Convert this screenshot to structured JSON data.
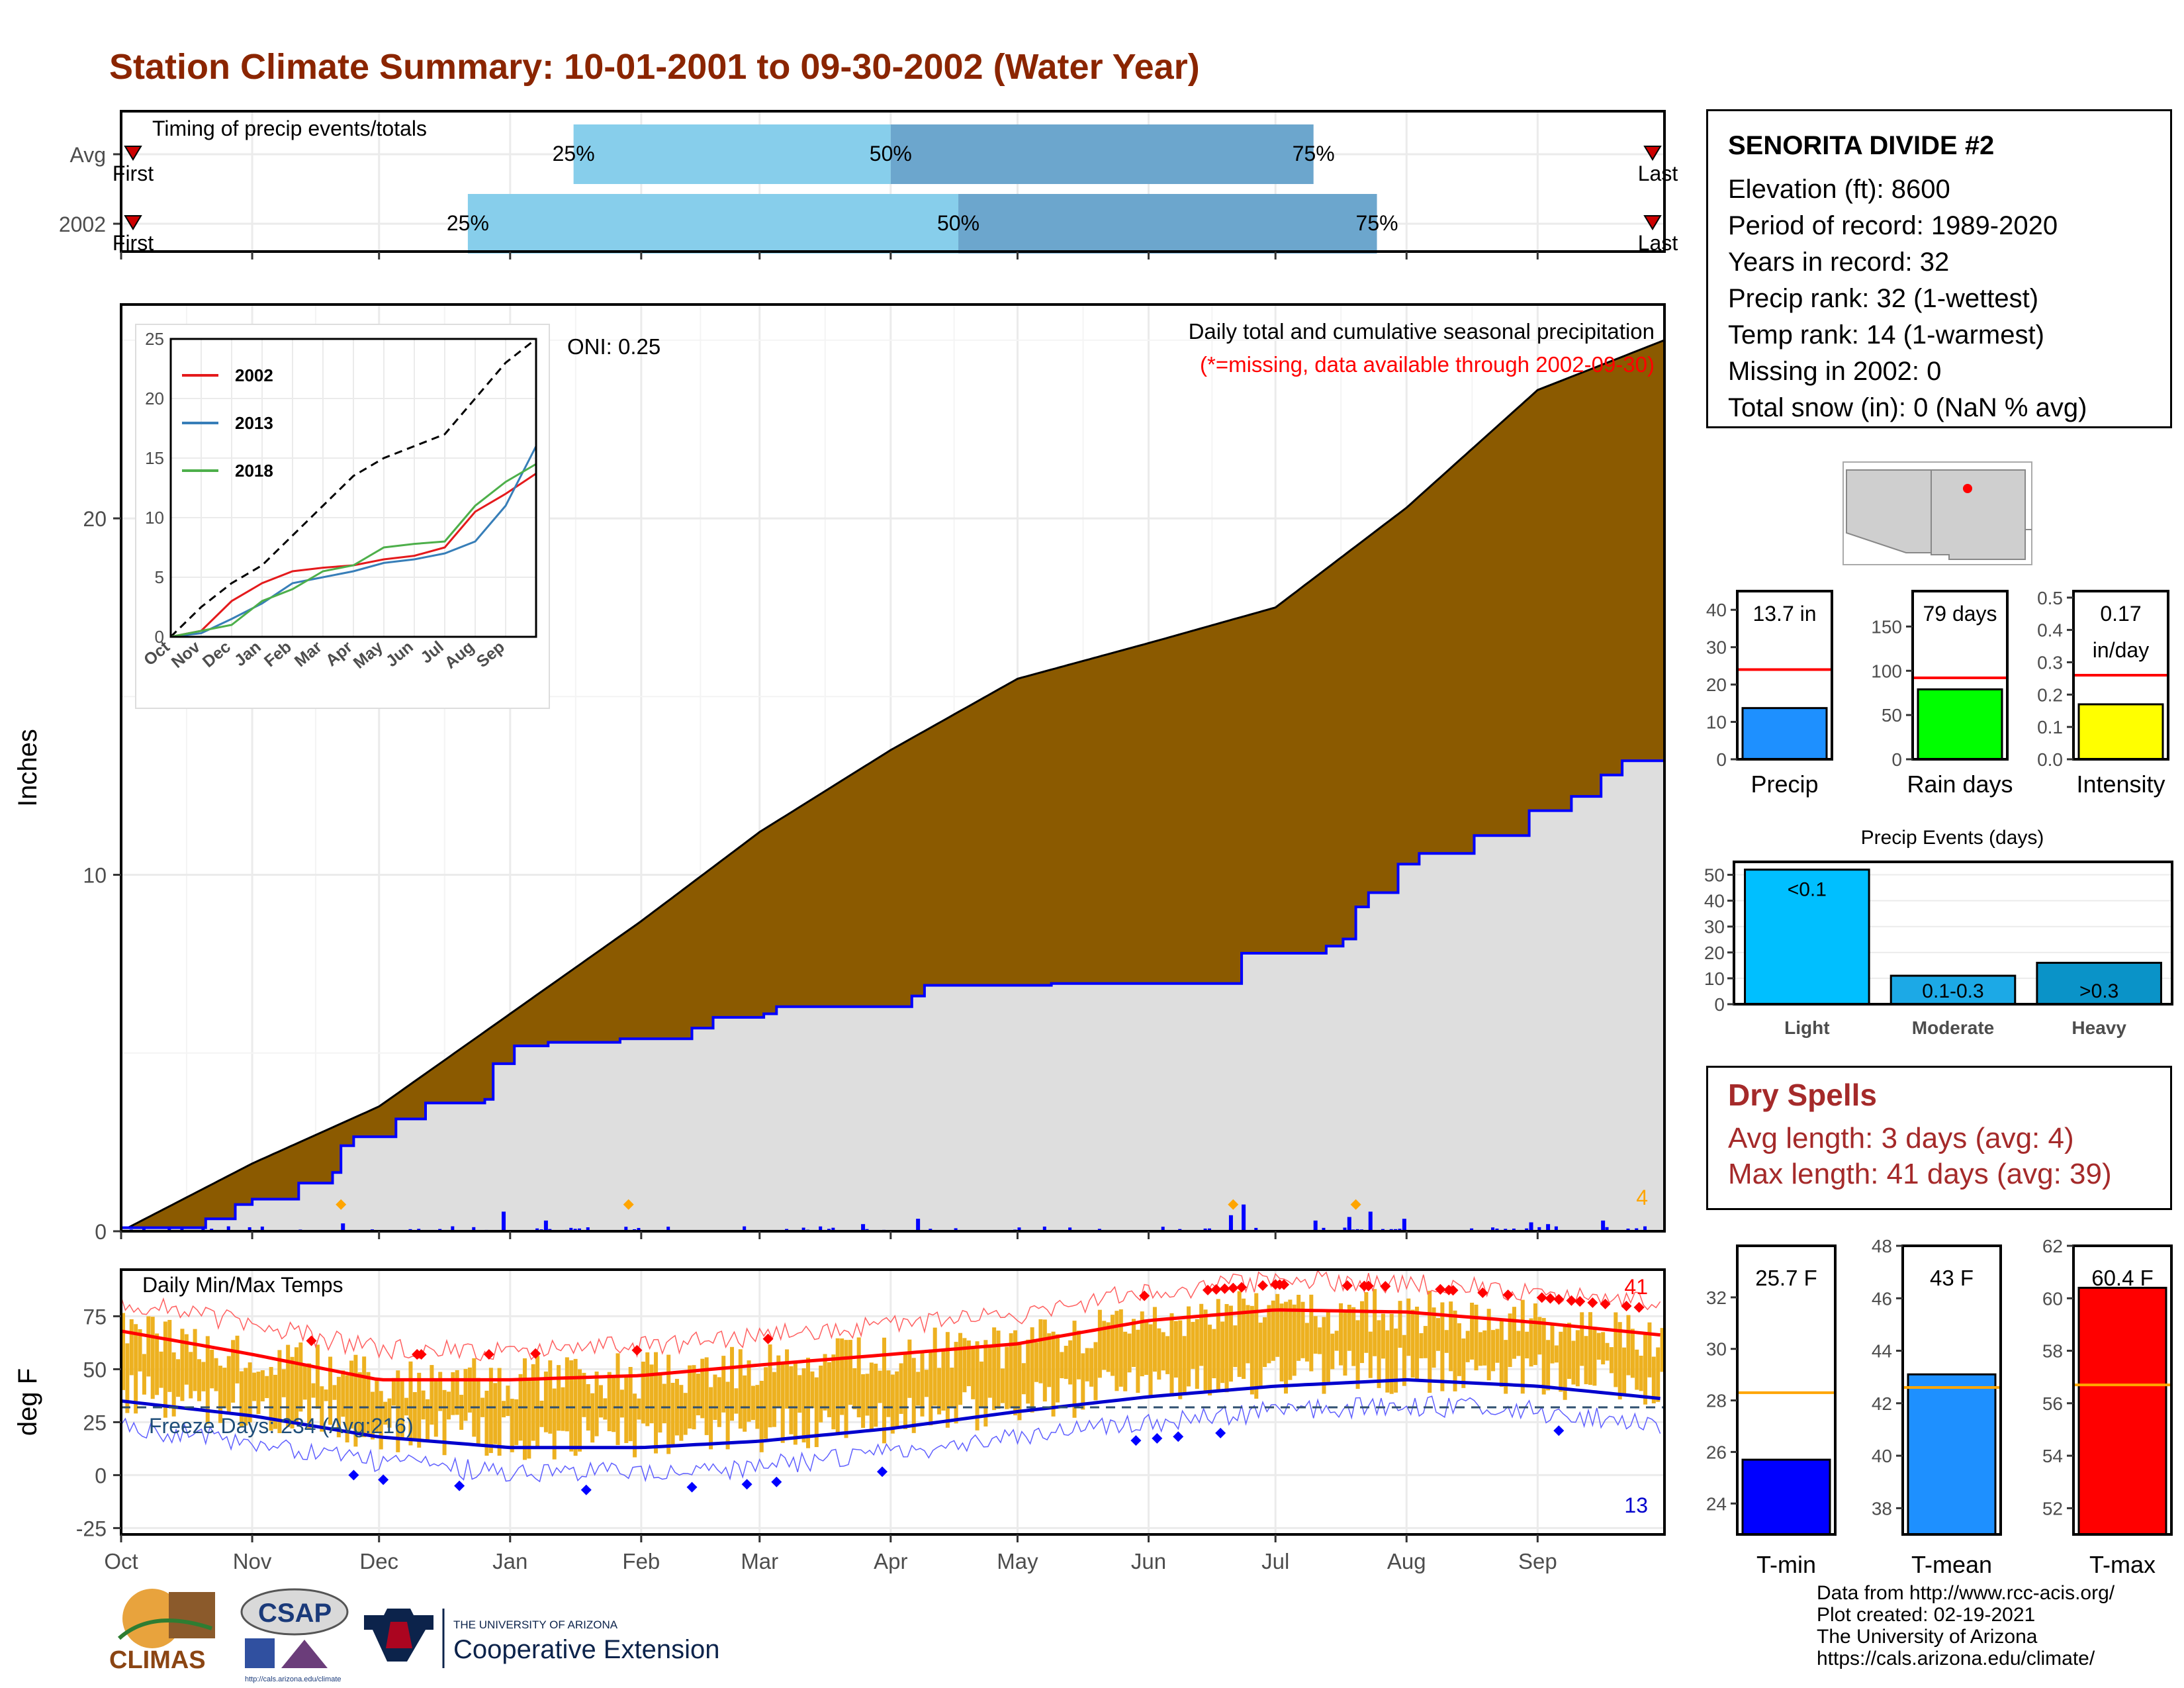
{
  "page": {
    "title": "Station Climate Summary: 10-01-2001 to 09-30-2002 (Water Year)"
  },
  "station": {
    "name": "SENORITA DIVIDE #2",
    "elevation": "Elevation (ft): 8600",
    "period": "Period of record: 1989-2020",
    "years": "Years in record: 32",
    "precip_rank": "Precip rank: 32 (1-wettest)",
    "temp_rank": "Temp rank: 14 (1-warmest)",
    "missing": "Missing in 2002: 0",
    "snow": "Total snow (in): 0 (NaN % avg)"
  },
  "dry_spells": {
    "title": "Dry Spells",
    "avg": "Avg length: 3 days (avg: 4)",
    "max": "Max length: 41 days (avg: 39)"
  },
  "credits": {
    "line1": "Data from http://www.rcc-acis.org/",
    "line2": "Plot created: 02-19-2021",
    "line3": "The University of Arizona",
    "line4": "https://cals.arizona.edu/climate/"
  },
  "logos": {
    "climas": "CLIMAS",
    "csap": "CSAP",
    "csap_url": "http://cals.arizona.edu/climate",
    "ua_small": "THE UNIVERSITY OF ARIZONA",
    "ua_ext": "Cooperative Extension"
  },
  "colors": {
    "title": "#8B2500",
    "cum_avg_fill": "#8B5A00",
    "cum_obs_fill": "#DEDEDE",
    "cum_obs_line": "#0000FF",
    "timing_light": "#87CEEB",
    "timing_dark": "#6CA6CD",
    "temp_bars": "#EDB120",
    "tmax": "#FF0000",
    "tmin": "#0000CD"
  },
  "chart_data": [
    {
      "id": "timing",
      "type": "bar",
      "title": "Timing of precip events/totals",
      "rows": [
        {
          "label": "Avg",
          "first": "First",
          "last": "Last",
          "p25": "25%",
          "p50": "50%",
          "p75": "75%",
          "q25_day": 107,
          "q50_day": 182,
          "q75_day": 282
        },
        {
          "label": "2002",
          "first": "First",
          "last": "Last",
          "p25": "25%",
          "p50": "50%",
          "p75": "75%",
          "q25_day": 82,
          "q50_day": 198,
          "q75_day": 297
        }
      ],
      "xlim": [
        0,
        365
      ]
    },
    {
      "id": "cumulative",
      "type": "area",
      "title": "Daily total and cumulative seasonal precipitation",
      "subtitle": "(*=missing, data available through 2002-09-30)",
      "oni": "ONI: 0.25",
      "ylabel": "Inches",
      "ylim": [
        0,
        26
      ],
      "yticks": [
        0,
        10,
        20
      ],
      "corner_label": "4",
      "months": [
        "Oct",
        "Nov",
        "Dec",
        "Jan",
        "Feb",
        "Mar",
        "Apr",
        "May",
        "Jun",
        "Jul",
        "Aug",
        "Sep"
      ],
      "month_days": [
        0,
        31,
        61,
        92,
        123,
        151,
        182,
        212,
        243,
        273,
        304,
        335
      ],
      "avg_cumulative": [
        [
          0,
          0
        ],
        [
          31,
          1.9
        ],
        [
          61,
          3.5
        ],
        [
          92,
          6.1
        ],
        [
          123,
          8.7
        ],
        [
          151,
          11.2
        ],
        [
          182,
          13.5
        ],
        [
          212,
          15.5
        ],
        [
          243,
          16.5
        ],
        [
          273,
          17.5
        ],
        [
          304,
          20.3
        ],
        [
          335,
          23.6
        ],
        [
          365,
          25
        ]
      ],
      "obs_cumulative": [
        [
          0,
          0.1
        ],
        [
          20,
          0.35
        ],
        [
          27,
          0.75
        ],
        [
          31,
          0.9
        ],
        [
          38,
          0.9
        ],
        [
          42,
          1.35
        ],
        [
          50,
          1.65
        ],
        [
          52,
          2.4
        ],
        [
          55,
          2.65
        ],
        [
          65,
          3.15
        ],
        [
          72,
          3.6
        ],
        [
          86,
          3.7
        ],
        [
          88,
          4.7
        ],
        [
          93,
          5.2
        ],
        [
          101,
          5.3
        ],
        [
          118,
          5.4
        ],
        [
          135,
          5.7
        ],
        [
          140,
          6.0
        ],
        [
          152,
          6.1
        ],
        [
          155,
          6.3
        ],
        [
          170,
          6.3
        ],
        [
          187,
          6.6
        ],
        [
          190,
          6.9
        ],
        [
          220,
          6.95
        ],
        [
          262,
          6.95
        ],
        [
          265,
          7.8
        ],
        [
          275,
          7.8
        ],
        [
          285,
          8.0
        ],
        [
          289,
          8.2
        ],
        [
          292,
          9.1
        ],
        [
          295,
          9.5
        ],
        [
          302,
          10.3
        ],
        [
          307,
          10.6
        ],
        [
          320,
          11.1
        ],
        [
          333,
          11.8
        ],
        [
          343,
          12.2
        ],
        [
          350,
          12.8
        ],
        [
          355,
          13.2
        ],
        [
          365,
          13.7
        ]
      ],
      "daily_big": [
        [
          52,
          0.22
        ],
        [
          90,
          0.55
        ],
        [
          100,
          0.3
        ],
        [
          175,
          0.2
        ],
        [
          188,
          0.35
        ],
        [
          262,
          0.45
        ],
        [
          265,
          0.75
        ],
        [
          282,
          0.3
        ],
        [
          290,
          0.4
        ],
        [
          295,
          0.55
        ],
        [
          303,
          0.35
        ],
        [
          333,
          0.25
        ],
        [
          337,
          0.2
        ],
        [
          350,
          0.3
        ]
      ],
      "missing_markers": [
        52,
        120,
        263,
        292
      ],
      "inset": {
        "ylim": [
          0,
          25
        ],
        "yticks": [
          0,
          5,
          10,
          15,
          20,
          25
        ],
        "months": [
          "Oct",
          "Nov",
          "Dec",
          "Jan",
          "Feb",
          "Mar",
          "Apr",
          "May",
          "Jun",
          "Jul",
          "Aug",
          "Sep"
        ],
        "series": [
          {
            "name": "2002",
            "color": "#E41A1C",
            "values": [
              [
                0,
                0
              ],
              [
                1,
                0.5
              ],
              [
                2,
                3
              ],
              [
                3,
                4.5
              ],
              [
                4,
                5.5
              ],
              [
                5,
                5.8
              ],
              [
                6,
                6
              ],
              [
                7,
                6.5
              ],
              [
                8,
                6.8
              ],
              [
                9,
                7.5
              ],
              [
                10,
                10.5
              ],
              [
                11,
                12
              ],
              [
                12,
                13.7
              ]
            ]
          },
          {
            "name": "2013",
            "color": "#377EB8",
            "values": [
              [
                0,
                0
              ],
              [
                1,
                0.3
              ],
              [
                2,
                1.5
              ],
              [
                3,
                2.8
              ],
              [
                4,
                4.5
              ],
              [
                5,
                5.0
              ],
              [
                6,
                5.5
              ],
              [
                7,
                6.2
              ],
              [
                8,
                6.5
              ],
              [
                9,
                7.0
              ],
              [
                10,
                8
              ],
              [
                11,
                11
              ],
              [
                12,
                16
              ]
            ]
          },
          {
            "name": "2018",
            "color": "#4DAF4A",
            "values": [
              [
                0,
                0
              ],
              [
                1,
                0.5
              ],
              [
                2,
                1
              ],
              [
                3,
                3
              ],
              [
                4,
                4
              ],
              [
                5,
                5.5
              ],
              [
                6,
                6
              ],
              [
                7,
                7.5
              ],
              [
                8,
                7.8
              ],
              [
                9,
                8
              ],
              [
                10,
                11
              ],
              [
                11,
                13
              ],
              [
                12,
                14.5
              ]
            ]
          }
        ],
        "avg_dashed": [
          [
            0,
            0
          ],
          [
            1,
            2.5
          ],
          [
            2,
            4.5
          ],
          [
            3,
            6
          ],
          [
            4,
            8.5
          ],
          [
            5,
            11
          ],
          [
            6,
            13.5
          ],
          [
            7,
            15
          ],
          [
            8,
            16
          ],
          [
            9,
            17
          ],
          [
            10,
            20
          ],
          [
            11,
            23
          ],
          [
            12,
            25
          ]
        ]
      }
    },
    {
      "id": "temps",
      "type": "line",
      "title": "Daily Min/Max Temps",
      "ylabel": "deg F",
      "ylim": [
        -28,
        97
      ],
      "yticks": [
        -25,
        0,
        25,
        50,
        75
      ],
      "freeze": "Freeze Days: 234 (Avg:216)",
      "freeze_line": 32,
      "tmax_count": "41",
      "tmin_count": "13",
      "months": [
        "Oct",
        "Nov",
        "Dec",
        "Jan",
        "Feb",
        "Mar",
        "Apr",
        "May",
        "Jun",
        "Jul",
        "Aug",
        "Sep"
      ],
      "tmax_avg": [
        [
          0,
          68
        ],
        [
          31,
          57
        ],
        [
          61,
          45
        ],
        [
          92,
          45
        ],
        [
          123,
          47
        ],
        [
          151,
          52
        ],
        [
          182,
          57
        ],
        [
          212,
          62
        ],
        [
          243,
          73
        ],
        [
          273,
          78
        ],
        [
          304,
          77
        ],
        [
          335,
          72
        ],
        [
          365,
          66
        ]
      ],
      "tmin_avg": [
        [
          0,
          35
        ],
        [
          31,
          28
        ],
        [
          61,
          18
        ],
        [
          92,
          13
        ],
        [
          123,
          13
        ],
        [
          151,
          16
        ],
        [
          182,
          22
        ],
        [
          212,
          30
        ],
        [
          243,
          37
        ],
        [
          273,
          42
        ],
        [
          304,
          45
        ],
        [
          335,
          42
        ],
        [
          365,
          36
        ]
      ]
    },
    {
      "id": "summary_bars",
      "type": "bar",
      "panels": [
        {
          "name": "Precip",
          "label": "13.7 in",
          "value": 13.7,
          "avg": 24,
          "ylim": [
            0,
            45
          ],
          "yticks": [
            0,
            10,
            20,
            30,
            40
          ],
          "color": "#1E90FF"
        },
        {
          "name": "Rain days",
          "label": "79 days",
          "value": 79,
          "avg": 92,
          "ylim": [
            0,
            190
          ],
          "yticks": [
            0,
            50,
            100,
            150
          ],
          "color": "#00FF00"
        },
        {
          "name": "Intensity",
          "label1": "0.17",
          "label2": "in/day",
          "value": 0.17,
          "avg": 0.26,
          "ylim": [
            0,
            0.52
          ],
          "yticks": [
            "0.0",
            "0.1",
            "0.2",
            "0.3",
            "0.4",
            "0.5"
          ],
          "color": "#FFFF00"
        }
      ]
    },
    {
      "id": "precip_events",
      "type": "bar",
      "title": "Precip Events (days)",
      "categories": [
        "Light",
        "Moderate",
        "Heavy"
      ],
      "labels": [
        "<0.1",
        "0.1-0.3",
        ">0.3"
      ],
      "values": [
        52,
        11,
        16
      ],
      "ylim": [
        0,
        55
      ],
      "yticks": [
        0,
        10,
        20,
        30,
        40,
        50
      ],
      "colors": [
        "#00BFFF",
        "#1CA9E6",
        "#0A93C8"
      ]
    },
    {
      "id": "temp_bars",
      "type": "bar",
      "panels": [
        {
          "name": "T-min",
          "label": "25.7 F",
          "value": 25.7,
          "avg": 28.3,
          "ylim": [
            22.8,
            34
          ],
          "yticks": [
            24,
            26,
            28,
            30,
            32
          ],
          "color": "#0000FF"
        },
        {
          "name": "T-mean",
          "label": "43 F",
          "value": 43.1,
          "avg": 42.6,
          "ylim": [
            37,
            48
          ],
          "yticks": [
            38,
            40,
            42,
            44,
            46,
            48
          ],
          "color": "#1E90FF"
        },
        {
          "name": "T-max",
          "label": "60.4 F",
          "value": 60.4,
          "avg": 56.7,
          "ylim": [
            51,
            62
          ],
          "yticks": [
            52,
            54,
            56,
            58,
            60,
            62
          ],
          "color": "#FF0000"
        }
      ]
    }
  ]
}
